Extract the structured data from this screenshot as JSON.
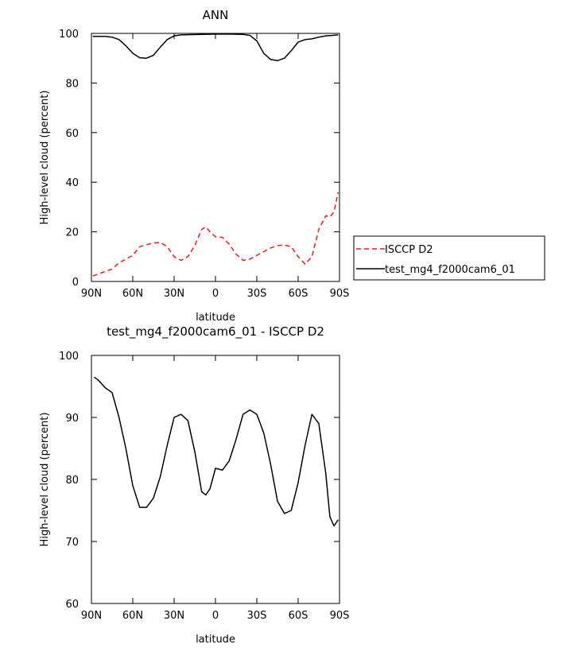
{
  "chart_data": [
    {
      "type": "line",
      "title": "ANN",
      "xlabel": "latitude",
      "ylabel": "High-level cloud (percent)",
      "xlim": [
        90,
        -90
      ],
      "ylim": [
        0,
        100
      ],
      "x_ticks": [
        90,
        60,
        30,
        0,
        -30,
        -60,
        -90
      ],
      "x_tick_labels": [
        "90N",
        "60N",
        "30N",
        "0",
        "30S",
        "60S",
        "90S"
      ],
      "y_ticks": [
        0,
        20,
        40,
        60,
        80,
        100
      ],
      "y_tick_labels": [
        "0",
        "20",
        "40",
        "60",
        "80",
        "100"
      ],
      "legend_position": "outside-right",
      "series": [
        {
          "name": "ISCCP D2",
          "color": "#e8191d",
          "dash": "dashed",
          "x": [
            89,
            85,
            80,
            75,
            70,
            65,
            60,
            55,
            50,
            45,
            40,
            35,
            30,
            25,
            20,
            15,
            10,
            7,
            4,
            0,
            -5,
            -10,
            -15,
            -20,
            -25,
            -30,
            -35,
            -40,
            -45,
            -50,
            -55,
            -60,
            -65,
            -70,
            -75,
            -80,
            -83,
            -86,
            -89
          ],
          "y": [
            2.2,
            3,
            4,
            5,
            7.5,
            9,
            10.5,
            14,
            14.8,
            15.5,
            15.7,
            14,
            10,
            8.5,
            10,
            14.5,
            21,
            22,
            20,
            18,
            17.8,
            15,
            11,
            8.5,
            9,
            10.5,
            12,
            13.5,
            14.5,
            14.7,
            14,
            10,
            7,
            10,
            21,
            26.5,
            26,
            28,
            36
          ]
        },
        {
          "name": "test_mg4_f2000cam6_01",
          "color": "#000000",
          "dash": "solid",
          "x": [
            89,
            80,
            75,
            70,
            65,
            60,
            55,
            50,
            45,
            40,
            35,
            30,
            25,
            20,
            10,
            0,
            -10,
            -20,
            -25,
            -30,
            -35,
            -40,
            -45,
            -50,
            -55,
            -60,
            -65,
            -70,
            -75,
            -80,
            -85,
            -89
          ],
          "y": [
            98.8,
            98.8,
            98.5,
            97.5,
            95,
            92,
            90.2,
            90,
            91.2,
            94.5,
            97.5,
            99,
            99.4,
            99.5,
            99.6,
            99.7,
            99.7,
            99.6,
            99.2,
            97,
            92,
            89.5,
            89,
            90,
            93,
            96.5,
            97.5,
            97.8,
            98.5,
            99,
            99.2,
            99.4
          ]
        }
      ]
    },
    {
      "type": "line",
      "title": "test_mg4_f2000cam6_01 - ISCCP D2",
      "xlabel": "latitude",
      "ylabel": "High-level cloud (percent)",
      "xlim": [
        90,
        -90
      ],
      "ylim": [
        60,
        100
      ],
      "x_ticks": [
        90,
        60,
        30,
        0,
        -30,
        -60,
        -90
      ],
      "x_tick_labels": [
        "90N",
        "60N",
        "30N",
        "0",
        "30S",
        "60S",
        "90S"
      ],
      "y_ticks": [
        60,
        70,
        80,
        90,
        100
      ],
      "y_tick_labels": [
        "60",
        "70",
        "80",
        "90",
        "100"
      ],
      "series": [
        {
          "color": "#000000",
          "dash": "solid",
          "x": [
            88,
            85,
            80,
            75,
            70,
            65,
            60,
            55,
            50,
            45,
            40,
            35,
            30,
            25,
            20,
            15,
            10,
            7,
            4,
            0,
            -5,
            -10,
            -15,
            -20,
            -25,
            -30,
            -35,
            -40,
            -45,
            -50,
            -55,
            -60,
            -65,
            -70,
            -75,
            -80,
            -83,
            -86,
            -89
          ],
          "y": [
            96.5,
            96,
            94.8,
            94,
            90,
            85,
            79,
            75.5,
            75.5,
            77,
            80.5,
            85.5,
            90,
            90.5,
            89.5,
            84.5,
            78,
            77.5,
            78.5,
            81.8,
            81.5,
            83,
            86.5,
            90.5,
            91.2,
            90.5,
            87.5,
            82.5,
            76.5,
            74.5,
            75,
            79.5,
            85.5,
            90.5,
            89,
            81,
            74,
            72.5,
            73.5
          ]
        }
      ]
    }
  ]
}
